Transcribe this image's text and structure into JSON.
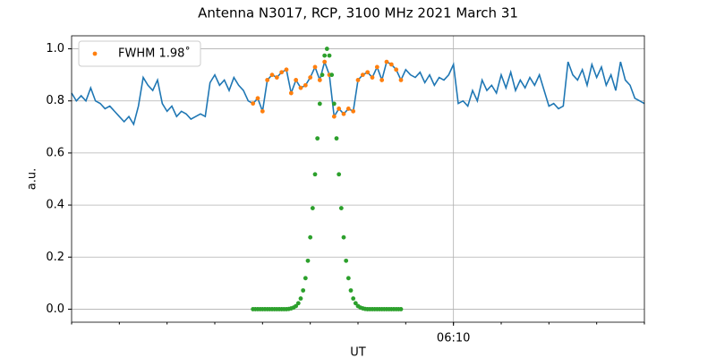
{
  "chart_data": {
    "type": "line",
    "title": "Antenna N3017, RCP, 3100 MHz 2021 March 31",
    "xlabel": "UT",
    "ylabel": "a.u.",
    "xlim": [
      362,
      374
    ],
    "xticks": [
      {
        "value": 370,
        "label": "06:10"
      }
    ],
    "xminor": [
      362,
      363,
      364,
      365,
      366,
      367,
      368,
      369,
      370,
      371,
      372,
      373,
      374
    ],
    "ylim": [
      -0.05,
      1.05
    ],
    "yticks": [
      {
        "value": 0,
        "label": "0.0"
      },
      0.2,
      0.4,
      0.6,
      0.8,
      {
        "value": 1,
        "label": "1.0"
      }
    ],
    "grid": true,
    "legend": "upper left",
    "series": [
      {
        "mode": "line",
        "color": "#1f77b4",
        "x": [
          362,
          362.1,
          362.2,
          362.3,
          362.4,
          362.5,
          362.6,
          362.7,
          362.8,
          362.9,
          363,
          363.1,
          363.2,
          363.3,
          363.4,
          363.5,
          363.6,
          363.7,
          363.8,
          363.9,
          364,
          364.1,
          364.2,
          364.3,
          364.4,
          364.5,
          364.6,
          364.7,
          364.8,
          364.9,
          365,
          365.1,
          365.2,
          365.3,
          365.4,
          365.5,
          365.6,
          365.7,
          365.8,
          365.9,
          366,
          366.1,
          366.2,
          366.3,
          366.4,
          366.5,
          366.6,
          366.7,
          366.8,
          366.9,
          367,
          367.1,
          367.2,
          367.3,
          367.4,
          367.5,
          367.6,
          367.7,
          367.8,
          367.9,
          368,
          368.1,
          368.2,
          368.3,
          368.4,
          368.5,
          368.6,
          368.7,
          368.8,
          368.9,
          369,
          369.1,
          369.2,
          369.3,
          369.4,
          369.5,
          369.6,
          369.7,
          369.8,
          369.9,
          370,
          370.1,
          370.2,
          370.3,
          370.4,
          370.5,
          370.6,
          370.7,
          370.8,
          370.9,
          371,
          371.1,
          371.2,
          371.3,
          371.4,
          371.5,
          371.6,
          371.7,
          371.8,
          371.9,
          372,
          372.1,
          372.2,
          372.3,
          372.4,
          372.5,
          372.6,
          372.7,
          372.8,
          372.9,
          373,
          373.1,
          373.2,
          373.3,
          373.4,
          373.5,
          373.6,
          373.7,
          373.8,
          373.9,
          374
        ],
        "values": [
          0.83,
          0.8,
          0.82,
          0.8,
          0.85,
          0.8,
          0.79,
          0.77,
          0.78,
          0.76,
          0.74,
          0.72,
          0.74,
          0.71,
          0.78,
          0.89,
          0.86,
          0.84,
          0.88,
          0.79,
          0.76,
          0.78,
          0.74,
          0.76,
          0.75,
          0.73,
          0.74,
          0.75,
          0.74,
          0.87,
          0.9,
          0.86,
          0.88,
          0.84,
          0.89,
          0.86,
          0.84,
          0.8,
          0.79,
          0.81,
          0.76,
          0.88,
          0.9,
          0.89,
          0.91,
          0.92,
          0.83,
          0.88,
          0.85,
          0.86,
          0.89,
          0.93,
          0.88,
          0.95,
          0.9,
          0.74,
          0.77,
          0.75,
          0.77,
          0.76,
          0.88,
          0.9,
          0.91,
          0.89,
          0.93,
          0.88,
          0.95,
          0.94,
          0.92,
          0.88,
          0.92,
          0.9,
          0.89,
          0.91,
          0.87,
          0.9,
          0.86,
          0.89,
          0.88,
          0.9,
          0.94,
          0.79,
          0.8,
          0.78,
          0.84,
          0.8,
          0.88,
          0.84,
          0.86,
          0.83,
          0.9,
          0.85,
          0.91,
          0.84,
          0.88,
          0.85,
          0.89,
          0.86,
          0.9,
          0.84,
          0.78,
          0.79,
          0.77,
          0.78,
          0.95,
          0.9,
          0.88,
          0.92,
          0.86,
          0.94,
          0.89,
          0.93,
          0.86,
          0.9,
          0.84,
          0.95,
          0.88,
          0.86,
          0.81,
          0.8,
          0.79
        ]
      },
      {
        "mode": "points",
        "name": "FWHM 1.98˚",
        "color": "#ff7f0e",
        "x": [
          365.8,
          365.9,
          366,
          366.1,
          366.2,
          366.3,
          366.4,
          366.5,
          366.6,
          366.7,
          366.8,
          366.9,
          367,
          367.1,
          367.2,
          367.3,
          367.4,
          367.5,
          367.6,
          367.7,
          367.8,
          367.9,
          368,
          368.1,
          368.2,
          368.3,
          368.4,
          368.5,
          368.6,
          368.7,
          368.8,
          368.9
        ],
        "values": [
          0.79,
          0.81,
          0.76,
          0.88,
          0.9,
          0.89,
          0.91,
          0.92,
          0.83,
          0.88,
          0.85,
          0.86,
          0.89,
          0.93,
          0.88,
          0.95,
          0.9,
          0.74,
          0.77,
          0.75,
          0.77,
          0.76,
          0.88,
          0.9,
          0.91,
          0.89,
          0.93,
          0.88,
          0.95,
          0.94,
          0.92,
          0.88
        ]
      },
      {
        "mode": "points",
        "color": "#2ca02c",
        "x": [
          365.8,
          365.85,
          365.9,
          365.95,
          366,
          366.05,
          366.1,
          366.15,
          366.2,
          366.25,
          366.3,
          366.35,
          366.4,
          366.45,
          366.5,
          366.55,
          366.6,
          366.65,
          366.7,
          366.75,
          366.8,
          366.85,
          366.9,
          366.95,
          367,
          367.05,
          367.1,
          367.15,
          367.2,
          367.25,
          367.3,
          367.35,
          367.4,
          367.45,
          367.5,
          367.55,
          367.6,
          367.65,
          367.7,
          367.75,
          367.8,
          367.85,
          367.9,
          367.95,
          368,
          368.05,
          368.1,
          368.15,
          368.2,
          368.25,
          368.3,
          368.35,
          368.4,
          368.45,
          368.5,
          368.55,
          368.6,
          368.65,
          368.7,
          368.75,
          368.8,
          368.85,
          368.9
        ],
        "values": [
          0,
          0,
          0,
          0,
          0,
          0,
          0,
          0,
          0,
          0,
          0,
          0,
          0,
          0,
          0,
          0.001,
          0.003,
          0.006,
          0.012,
          0.023,
          0.041,
          0.072,
          0.119,
          0.186,
          0.276,
          0.388,
          0.518,
          0.656,
          0.789,
          0.9,
          0.974,
          1.0,
          0.974,
          0.9,
          0.789,
          0.656,
          0.518,
          0.388,
          0.276,
          0.186,
          0.119,
          0.072,
          0.041,
          0.023,
          0.012,
          0.006,
          0.003,
          0.001,
          0,
          0,
          0,
          0,
          0,
          0,
          0,
          0,
          0,
          0,
          0,
          0,
          0,
          0,
          0
        ]
      }
    ]
  }
}
